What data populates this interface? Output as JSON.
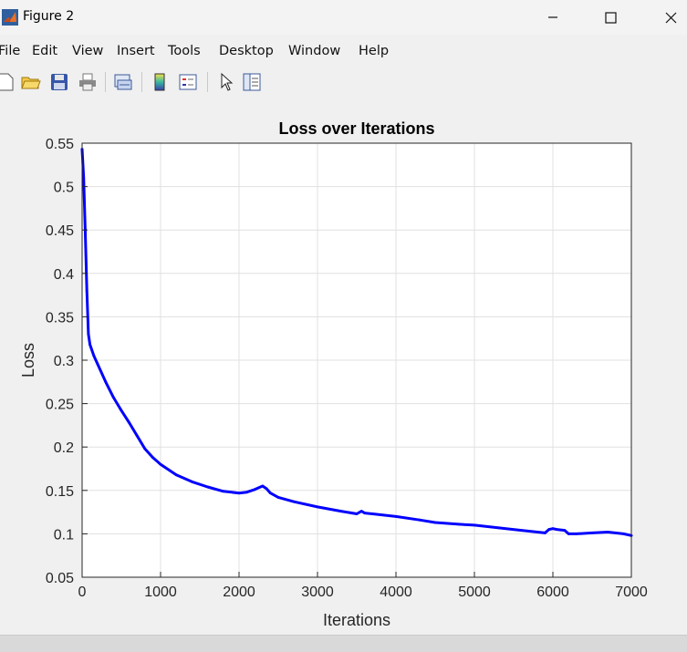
{
  "window": {
    "title": "Figure 2",
    "minimize_icon": "minimize-icon",
    "maximize_icon": "maximize-icon",
    "close_icon": "close-icon"
  },
  "menu": [
    "File",
    "Edit",
    "View",
    "Insert",
    "Tools",
    "Desktop",
    "Window",
    "Help"
  ],
  "toolbar": [
    "new-figure-icon",
    "open-file-icon",
    "save-icon",
    "print-icon",
    "link-plot-icon",
    "colorbar-icon",
    "legend-icon",
    "pointer-icon",
    "property-inspector-icon"
  ],
  "colors": {
    "series": "#0000ff",
    "grid": "#e0e0e0",
    "axes": "#262626"
  },
  "chart_data": {
    "type": "line",
    "title": "Loss over Iterations",
    "xlabel": "Iterations",
    "ylabel": "Loss",
    "xlim": [
      0,
      7000
    ],
    "ylim": [
      0.05,
      0.55
    ],
    "xticks": [
      0,
      1000,
      2000,
      3000,
      4000,
      5000,
      6000,
      7000
    ],
    "yticks": [
      "0.05",
      "0.1",
      "0.15",
      "0.2",
      "0.25",
      "0.3",
      "0.35",
      "0.4",
      "0.45",
      "0.5",
      "0.55"
    ],
    "grid": true,
    "series": [
      {
        "x": [
          0,
          20,
          40,
          60,
          80,
          100,
          150,
          200,
          300,
          400,
          500,
          600,
          700,
          800,
          900,
          1000,
          1200,
          1400,
          1600,
          1800,
          2000,
          2100,
          2200,
          2300,
          2350,
          2400,
          2500,
          2700,
          3000,
          3300,
          3500,
          3560,
          3600,
          3700,
          4000,
          4300,
          4500,
          4800,
          5000,
          5300,
          5600,
          5900,
          5950,
          6000,
          6050,
          6150,
          6200,
          6300,
          6500,
          6700,
          6900,
          7000
        ],
        "y": [
          0.543,
          0.51,
          0.45,
          0.38,
          0.33,
          0.318,
          0.305,
          0.295,
          0.275,
          0.257,
          0.242,
          0.228,
          0.213,
          0.198,
          0.188,
          0.18,
          0.168,
          0.16,
          0.154,
          0.149,
          0.147,
          0.148,
          0.151,
          0.155,
          0.152,
          0.147,
          0.142,
          0.137,
          0.131,
          0.126,
          0.123,
          0.126,
          0.124,
          0.123,
          0.12,
          0.116,
          0.113,
          0.111,
          0.11,
          0.107,
          0.104,
          0.101,
          0.105,
          0.106,
          0.105,
          0.104,
          0.1,
          0.1,
          0.101,
          0.102,
          0.1,
          0.098
        ]
      }
    ]
  }
}
